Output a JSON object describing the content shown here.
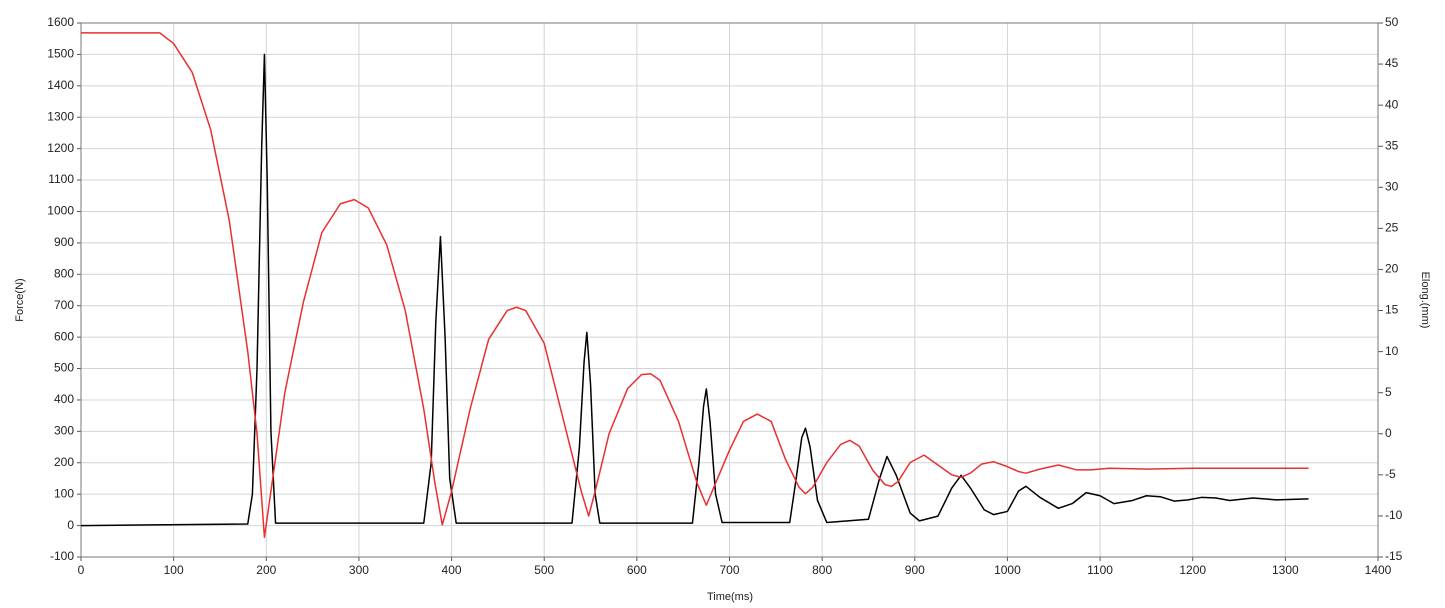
{
  "chart_data": {
    "type": "line",
    "x_label": "Time(ms)",
    "y_label": "Force(N)",
    "y2_label": "Elong.(mm)",
    "xlim": [
      0,
      1400
    ],
    "xticks": [
      0,
      100,
      200,
      300,
      400,
      500,
      600,
      700,
      800,
      900,
      1000,
      1100,
      1200,
      1300,
      1400
    ],
    "ylim": [
      -100,
      1600
    ],
    "yticks": [
      -100,
      0,
      100,
      200,
      300,
      400,
      500,
      600,
      700,
      800,
      900,
      1000,
      1100,
      1200,
      1300,
      1400,
      1500,
      1600
    ],
    "y2lim": [
      -15,
      50
    ],
    "y2ticks": [
      -15,
      -10,
      -5,
      0,
      5,
      10,
      15,
      20,
      25,
      30,
      35,
      40,
      45,
      50
    ],
    "grid": true,
    "series": [
      {
        "color": "#000000",
        "x": [
          0,
          180,
          185,
          190,
          195,
          198,
          201,
          205,
          210,
          370,
          378,
          383,
          388,
          393,
          398,
          405,
          530,
          538,
          543,
          546,
          550,
          555,
          560,
          660,
          667,
          672,
          675,
          679,
          685,
          692,
          765,
          772,
          778,
          782,
          787,
          795,
          805,
          850,
          862,
          870,
          880,
          895,
          905,
          925,
          940,
          950,
          960,
          975,
          985,
          1000,
          1012,
          1020,
          1035,
          1055,
          1070,
          1085,
          1100,
          1115,
          1135,
          1150,
          1165,
          1180,
          1195,
          1210,
          1225,
          1240,
          1265,
          1290,
          1325
        ],
        "values": [
          0,
          5,
          100,
          500,
          1200,
          1500,
          1100,
          300,
          8,
          8,
          200,
          650,
          920,
          600,
          150,
          8,
          8,
          250,
          520,
          615,
          450,
          100,
          8,
          8,
          200,
          380,
          435,
          330,
          100,
          10,
          10,
          150,
          280,
          310,
          250,
          80,
          10,
          20,
          150,
          220,
          160,
          40,
          15,
          30,
          120,
          160,
          120,
          50,
          35,
          45,
          110,
          125,
          90,
          55,
          70,
          105,
          95,
          70,
          80,
          95,
          92,
          78,
          82,
          90,
          88,
          80,
          88,
          82,
          85
        ]
      },
      {
        "color": "#e8302f",
        "axis": "y2",
        "x": [
          0,
          85,
          100,
          120,
          140,
          160,
          180,
          190,
          198,
          205,
          220,
          240,
          260,
          280,
          295,
          310,
          330,
          350,
          370,
          382,
          390,
          400,
          420,
          440,
          460,
          470,
          480,
          500,
          520,
          540,
          548,
          555,
          570,
          590,
          605,
          615,
          625,
          645,
          665,
          675,
          685,
          700,
          715,
          730,
          745,
          760,
          775,
          782,
          790,
          805,
          820,
          830,
          840,
          855,
          868,
          875,
          882,
          895,
          910,
          925,
          940,
          950,
          960,
          972,
          985,
          1000,
          1012,
          1020,
          1035,
          1055,
          1075,
          1090,
          1110,
          1150,
          1200,
          1250,
          1325
        ],
        "values": [
          48.8,
          48.8,
          47.5,
          44,
          37,
          26,
          10,
          0,
          -12.6,
          -7,
          5,
          16,
          24.5,
          28,
          28.5,
          27.5,
          23,
          15,
          3,
          -6,
          -11.1,
          -7,
          3,
          11.5,
          15,
          15.4,
          15,
          11,
          2,
          -7,
          -10,
          -7,
          0,
          5.5,
          7.2,
          7.3,
          6.5,
          1.5,
          -6,
          -8.7,
          -6,
          -2,
          1.5,
          2.4,
          1.5,
          -3,
          -6.5,
          -7.3,
          -6.5,
          -3.5,
          -1.3,
          -0.8,
          -1.5,
          -4.5,
          -6.2,
          -6.4,
          -5.8,
          -3.5,
          -2.6,
          -3.8,
          -5,
          -5.3,
          -4.8,
          -3.7,
          -3.4,
          -4,
          -4.6,
          -4.8,
          -4.3,
          -3.8,
          -4.4,
          -4.4,
          -4.2,
          -4.3,
          -4.2,
          -4.2,
          -4.2
        ]
      }
    ]
  }
}
